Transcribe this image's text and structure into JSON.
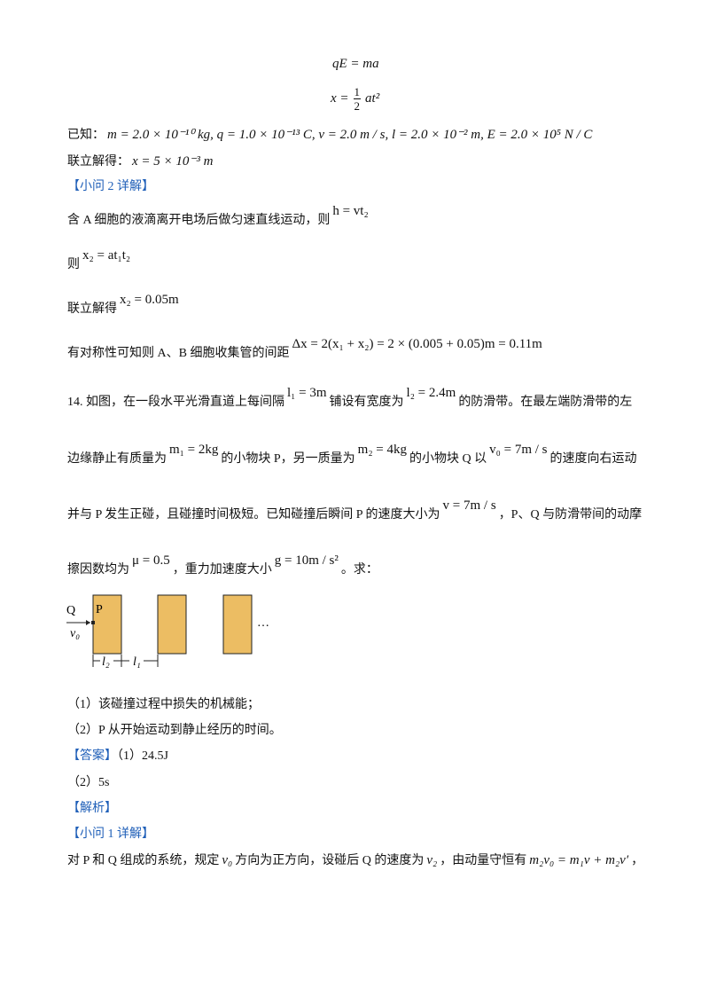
{
  "lines": [
    [
      "qE = ma"
    ],
    [
      "x =",
      "1",
      "2",
      "at²"
    ],
    [
      "已知：",
      "m = 2.0 × 10⁻¹⁰  kg, q = 1.0 × 10⁻¹³  C, v = 2.0  m / s, l = 2.0 × 10⁻²  m, E = 2.0 × 10⁵  N / C"
    ],
    [
      "联立解得：",
      "x = 5 × 10⁻³  m"
    ],
    [
      "【小问 2 详解】"
    ],
    [
      "含 A 细胞的液滴离开电场后做匀速直线运动，则",
      "h = vt₂"
    ],
    [
      "则",
      "x₂ = at₁t₂"
    ],
    [
      "联立解得",
      "x₂ = 0.05m"
    ],
    [
      "有对称性可知则 A、B 细胞收集管的间距",
      "Δx = 2(x₁ + x₂) = 2 × (0.005 + 0.05)m = 0.11m"
    ],
    [
      "14. 如图，在一段水平光滑直道上每间隔",
      "l₁ = 3m",
      "铺设有宽度为",
      "l₂ = 2.4m",
      "的防滑带。在最左端防滑带的左"
    ],
    [
      "边缘静止有质量为",
      "m₁ = 2kg",
      "的小物块 P，另一质量为",
      "m₂ = 4kg",
      "的小物块 Q 以",
      "v₀ = 7m / s",
      "的速度向右运动"
    ],
    [
      "并与 P 发生正碰，且碰撞时间极短。已知碰撞后瞬间 P 的速度大小为",
      "v = 7m / s",
      "，P、Q 与防滑带间的动摩"
    ],
    [
      "擦因数均为",
      "μ = 0.5",
      "，重力加速度大小",
      "g = 10m / s²",
      "。求："
    ],
    [
      "（1）该碰撞过程中损失的机械能；"
    ],
    [
      "（2）P 从开始运动到静止经历的时间。"
    ],
    [
      "【答案】",
      "（1）24.5J"
    ],
    [
      "（2）5s"
    ],
    [
      "【解析】"
    ],
    [
      "【小问 1 详解】"
    ],
    [
      "对 P 和 Q 组成的系统，规定",
      "v₀",
      "方向为正方向，设碰后 Q 的速度为",
      "v₂",
      "，由动量守恒有",
      "m₂v₀ = m₁v + m₂v′",
      "，"
    ]
  ],
  "figure": {
    "q": "Q",
    "p": "P",
    "v0": "v₀",
    "l2": "l₂",
    "l1": "l₁",
    "more": "…"
  }
}
